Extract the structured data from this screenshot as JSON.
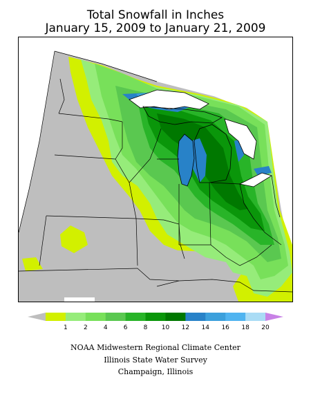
{
  "title": {
    "line1": "Total Snowfall in Inches",
    "line2": "January 15, 2009 to January 21, 2009"
  },
  "map": {
    "region": "Midwestern United States",
    "no_data_color": "#bebebe",
    "water_color": "#ffffff"
  },
  "legend": {
    "labels": [
      "1",
      "2",
      "4",
      "6",
      "8",
      "10",
      "12",
      "14",
      "16",
      "18",
      "20"
    ],
    "under_color": "#bebebe",
    "over_color": "#c882e6",
    "colors": [
      "#d2f000",
      "#96ec7a",
      "#78e05a",
      "#5ac850",
      "#28b428",
      "#0a960a",
      "#007800",
      "#2882c8",
      "#3ca0dc",
      "#50b4f0",
      "#aadcf5"
    ]
  },
  "credits": {
    "line1": "NOAA Midwestern Regional Climate Center",
    "line2": "Illinois State Water Survey",
    "line3": "Champaign, Illinois"
  }
}
